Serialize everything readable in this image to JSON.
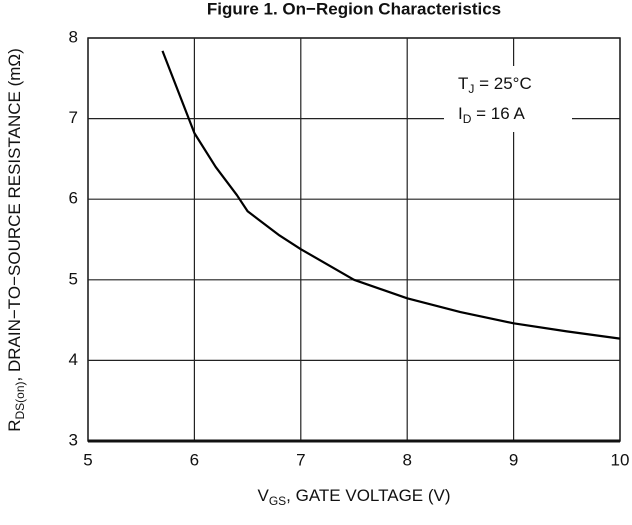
{
  "chart_data": {
    "type": "line",
    "title": "Figure 1. On−Region Characteristics",
    "xlabel": [
      "V",
      "GS",
      ", GATE VOLTAGE (V)"
    ],
    "ylabel": [
      "R",
      "DS(on)",
      ", DRAIN−TO−SOURCE RESISTANCE (mΩ)"
    ],
    "annotations": [
      [
        "T",
        "J",
        " = 25°C"
      ],
      [
        "I",
        "D",
        " = 16 A"
      ]
    ],
    "x": [
      5.7,
      6.0,
      6.2,
      6.4,
      6.5,
      6.6,
      6.8,
      7.0,
      7.5,
      8.0,
      8.5,
      9.0,
      9.5,
      10.0
    ],
    "series": [
      {
        "name": "RDS(on)",
        "color": "#000000",
        "values": [
          7.84,
          6.82,
          6.4,
          6.05,
          5.85,
          5.75,
          5.55,
          5.38,
          5.0,
          4.77,
          4.6,
          4.46,
          4.36,
          4.27
        ]
      }
    ],
    "xlim": [
      5,
      10
    ],
    "xticks": [
      5,
      6,
      7,
      8,
      9,
      10
    ],
    "ylim": [
      3,
      8
    ],
    "yticks": [
      3,
      4,
      5,
      6,
      7,
      8
    ],
    "grid": true
  }
}
